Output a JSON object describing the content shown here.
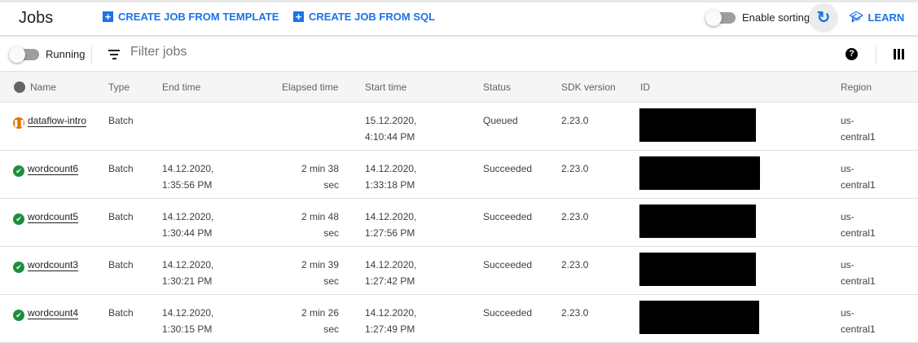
{
  "header": {
    "title": "Jobs",
    "create_template": "CREATE JOB FROM TEMPLATE",
    "create_sql": "CREATE JOB FROM SQL",
    "enable_sorting": "Enable sorting",
    "learn": "LEARN"
  },
  "toolbar": {
    "running": "Running",
    "filter_placeholder": "Filter jobs"
  },
  "columns": [
    "Name",
    "Type",
    "End time",
    "Elapsed time",
    "Start time",
    "Status",
    "SDK version",
    "ID",
    "Region"
  ],
  "colors": {
    "accent": "#1a73e8",
    "queued": "#e37400",
    "succeeded": "#1e8e3e"
  },
  "rows": [
    {
      "name": "dataflow-intro",
      "status_icon": "pause-icon",
      "type": "Batch",
      "end": "",
      "elapsed": "",
      "start": "15.12.2020, 4:10:44 PM",
      "status": "Queued",
      "sdk": "2.23.0",
      "region": "us-central1"
    },
    {
      "name": "wordcount6",
      "status_icon": "check-icon",
      "type": "Batch",
      "end": "14.12.2020, 1:35:56 PM",
      "elapsed": "2 min 38 sec",
      "start": "14.12.2020, 1:33:18 PM",
      "status": "Succeeded",
      "sdk": "2.23.0",
      "region": "us-central1"
    },
    {
      "name": "wordcount5",
      "status_icon": "check-icon",
      "type": "Batch",
      "end": "14.12.2020, 1:30:44 PM",
      "elapsed": "2 min 48 sec",
      "start": "14.12.2020, 1:27:56 PM",
      "status": "Succeeded",
      "sdk": "2.23.0",
      "region": "us-central1"
    },
    {
      "name": "wordcount3",
      "status_icon": "check-icon",
      "type": "Batch",
      "end": "14.12.2020, 1:30:21 PM",
      "elapsed": "2 min 39 sec",
      "start": "14.12.2020, 1:27:42 PM",
      "status": "Succeeded",
      "sdk": "2.23.0",
      "region": "us-central1"
    },
    {
      "name": "wordcount4",
      "status_icon": "check-icon",
      "type": "Batch",
      "end": "14.12.2020, 1:30:15 PM",
      "elapsed": "2 min 26 sec",
      "start": "14.12.2020, 1:27:49 PM",
      "status": "Succeeded",
      "sdk": "2.23.0",
      "region": "us-central1"
    }
  ]
}
